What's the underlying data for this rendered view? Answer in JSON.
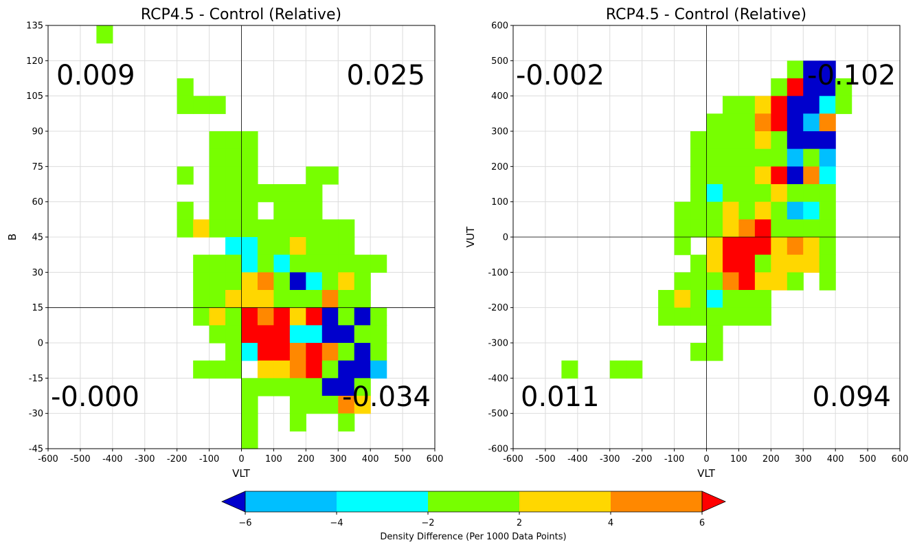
{
  "chart_data": [
    {
      "type": "heatmap",
      "title": "RCP4.5 - Control (Relative)",
      "xlabel": "VLT",
      "ylabel": "B",
      "xlim": [
        -600,
        600
      ],
      "ylim": [
        -45,
        135
      ],
      "xticks": [
        "-600",
        "-500",
        "-400",
        "-300",
        "-200",
        "-100",
        "0",
        "100",
        "200",
        "300",
        "400",
        "500",
        "600"
      ],
      "yticks": [
        "-45",
        "-30",
        "-15",
        "0",
        "15",
        "30",
        "45",
        "60",
        "75",
        "90",
        "105",
        "120",
        "135"
      ],
      "bin_size": {
        "x": 50,
        "y": 7.5
      },
      "crosshair": {
        "x": 0,
        "y": 15
      },
      "quadrant_values": {
        "top_left": "0.009",
        "top_right": "0.025",
        "bottom_left": "-0.000",
        "bottom_right": "-0.034"
      },
      "rows": [
        {
          "y": 127.5,
          "cells": "G",
          "x0": -450
        },
        {
          "y": 105,
          "cells": "G",
          "x0": -200
        },
        {
          "y": 97.5,
          "cells": "GGG",
          "x0": -200
        },
        {
          "y": 82.5,
          "cells": "GGG",
          "x0": -100
        },
        {
          "y": 75,
          "cells": "GGG",
          "x0": -100
        },
        {
          "y": 67.5,
          "cells": "G.GGG...GG",
          "x0": -200
        },
        {
          "y": 60,
          "cells": "GGGGGGG",
          "x0": -100
        },
        {
          "y": 52.5,
          "cells": "G.GGG.GGG",
          "x0": -200
        },
        {
          "y": 45,
          "cells": "GYGGGGGGGGG",
          "x0": -200
        },
        {
          "y": 37.5,
          "cells": "CCGGYGGG",
          "x0": -50
        },
        {
          "y": 30,
          "cells": "GGGCGCGGGGGG",
          "x0": -150
        },
        {
          "y": 22.5,
          "cells": "GGGYOGBCGYG",
          "x0": -150
        },
        {
          "y": 15,
          "cells": "GGYYYGGGOGG",
          "x0": -150
        },
        {
          "y": 7.5,
          "cells": "GYGRORYRBGBG",
          "x0": -150
        },
        {
          "y": 0,
          "cells": "GGRRRCCBBGG",
          "x0": -100
        },
        {
          "y": -7.5,
          "cells": "GCRROROGBG",
          "x0": -50
        },
        {
          "y": -15,
          "cells": "GGG.YYORGBBL",
          "x0": -150
        },
        {
          "y": -22.5,
          "cells": "GGGGGBBG",
          "x0": 0
        },
        {
          "y": -30,
          "cells": "G..GGGOY",
          "x0": 0
        },
        {
          "y": -37.5,
          "cells": "G..G..G",
          "x0": 0
        },
        {
          "y": -45,
          "cells": "G",
          "x0": 0
        }
      ]
    },
    {
      "type": "heatmap",
      "title": "RCP4.5 - Control (Relative)",
      "xlabel": "VLT",
      "ylabel": "VUT",
      "xlim": [
        -600,
        600
      ],
      "ylim": [
        -600,
        600
      ],
      "xticks": [
        "-600",
        "-500",
        "-400",
        "-300",
        "-200",
        "-100",
        "0",
        "100",
        "200",
        "300",
        "400",
        "500",
        "600"
      ],
      "yticks": [
        "-600",
        "-500",
        "-400",
        "-300",
        "-200",
        "-100",
        "0",
        "100",
        "200",
        "300",
        "400",
        "500",
        "600"
      ],
      "bin_size": {
        "x": 50,
        "y": 50
      },
      "crosshair": {
        "x": 0,
        "y": 0
      },
      "quadrant_values": {
        "top_left": "-0.002",
        "top_right": "-0.102",
        "bottom_left": "0.011",
        "bottom_right": "0.094"
      },
      "rows": [
        {
          "y": 450,
          "cells": "GBB",
          "x0": 250
        },
        {
          "y": 400,
          "cells": "GRBBG",
          "x0": 200
        },
        {
          "y": 350,
          "cells": "GGYRBBCG",
          "x0": 50
        },
        {
          "y": 300,
          "cells": "GGGORBLO",
          "x0": 0
        },
        {
          "y": 250,
          "cells": "GGGGYGBBB",
          "x0": -50
        },
        {
          "y": 200,
          "cells": "GGGGGGLGL",
          "x0": -50
        },
        {
          "y": 150,
          "cells": "GGGGYRBOC",
          "x0": -50
        },
        {
          "y": 100,
          "cells": "GCGGGYGGG",
          "x0": -50
        },
        {
          "y": 50,
          "cells": "GGGYGYGLCG",
          "x0": -100
        },
        {
          "y": 0,
          "cells": "GGGYORGGGG",
          "x0": -100
        },
        {
          "y": -50,
          "cells": "G.YRRRYOYG",
          "x0": -100
        },
        {
          "y": -100,
          "cells": "GYRRGYYYG",
          "x0": -50
        },
        {
          "y": -150,
          "cells": "GGGORYYG.G",
          "x0": -100
        },
        {
          "y": -200,
          "cells": "GYGCGGG",
          "x0": -150
        },
        {
          "y": -250,
          "cells": "GGGGGGG",
          "x0": -150
        },
        {
          "y": -300,
          "cells": "G",
          "x0": 0
        },
        {
          "y": -350,
          "cells": "GG",
          "x0": -50
        },
        {
          "y": -400,
          "cells": "G..GG",
          "x0": -450
        }
      ]
    }
  ],
  "colorbar": {
    "label": "Density Difference (Per 1000 Data Points)",
    "ticks": [
      "−6",
      "−4",
      "−2",
      "2",
      "4",
      "6"
    ],
    "segments": [
      "#0000cc",
      "#00bfff",
      "#00ffff",
      "#77ff00",
      "#ffd700",
      "#ff8800",
      "#ff0000"
    ]
  },
  "palette": {
    "B": "#0000cc",
    "L": "#00bfff",
    "C": "#00ffff",
    "G": "#77ff00",
    "Y": "#ffd700",
    "O": "#ff8800",
    "R": "#ff0000"
  }
}
